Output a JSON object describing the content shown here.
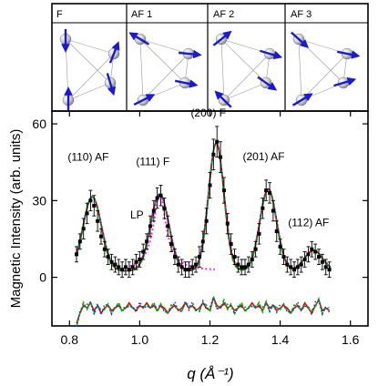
{
  "colors": {
    "frame": "#000000",
    "data_points": "#000000",
    "fit_red": "#dd0000",
    "fit_green": "#00b000",
    "fit_blue": "#2233dd",
    "lorentzian": "#ff22ff",
    "arrow": "#1a1ad0",
    "sphere": "#cfcfcf"
  },
  "config_panels": [
    {
      "label": "F"
    },
    {
      "label": "AF 1"
    },
    {
      "label": "AF 2"
    },
    {
      "label": "AF 3"
    }
  ],
  "chart_data": {
    "type": "line",
    "xlabel": "q (Å⁻¹)",
    "ylabel": "Magnetic Intensity (arb. units)",
    "xlim": [
      0.75,
      1.65
    ],
    "ylim": [
      -19,
      65
    ],
    "xticks": [
      0.8,
      1.0,
      1.2,
      1.4,
      1.6
    ],
    "xtick_labels": [
      "0.8",
      "1.0",
      "1.2",
      "1.4",
      "1.6"
    ],
    "yticks": [
      0,
      30,
      60
    ],
    "ytick_labels": [
      "0",
      "30",
      "60"
    ],
    "grid": false,
    "legend": "none",
    "peaks": [
      {
        "label": "(110) AF",
        "center": 0.865,
        "height": 29,
        "width": 0.026
      },
      {
        "label": "(111) F",
        "center": 1.057,
        "height": 30,
        "width": 0.026
      },
      {
        "label": "(200) F",
        "center": 1.218,
        "height": 50,
        "width": 0.022
      },
      {
        "label": "(201) AF",
        "center": 1.366,
        "height": 32,
        "width": 0.024
      },
      {
        "label": "(112) AF",
        "center": 1.495,
        "height": 8,
        "width": 0.026
      }
    ],
    "background": 2.5,
    "lorentzian_label": "LP",
    "points": [
      [
        0.82,
        9,
        3
      ],
      [
        0.83,
        14,
        3
      ],
      [
        0.84,
        19,
        4
      ],
      [
        0.85,
        25,
        4
      ],
      [
        0.86,
        30,
        4
      ],
      [
        0.87,
        28,
        4
      ],
      [
        0.88,
        22,
        4
      ],
      [
        0.89,
        16,
        3
      ],
      [
        0.9,
        11,
        3
      ],
      [
        0.91,
        8,
        3
      ],
      [
        0.92,
        6,
        3
      ],
      [
        0.93,
        5,
        3
      ],
      [
        0.94,
        4,
        3
      ],
      [
        0.95,
        3,
        3
      ],
      [
        0.96,
        4,
        3
      ],
      [
        0.97,
        3,
        3
      ],
      [
        0.98,
        4,
        3
      ],
      [
        0.99,
        6,
        3
      ],
      [
        1.0,
        7,
        3
      ],
      [
        1.01,
        10,
        3
      ],
      [
        1.02,
        14,
        3
      ],
      [
        1.03,
        20,
        4
      ],
      [
        1.04,
        26,
        4
      ],
      [
        1.05,
        31,
        4
      ],
      [
        1.06,
        32,
        4
      ],
      [
        1.07,
        27,
        4
      ],
      [
        1.08,
        20,
        4
      ],
      [
        1.09,
        13,
        3
      ],
      [
        1.1,
        8,
        3
      ],
      [
        1.11,
        5,
        3
      ],
      [
        1.12,
        4,
        3
      ],
      [
        1.13,
        3,
        3
      ],
      [
        1.14,
        3,
        3
      ],
      [
        1.15,
        4,
        3
      ],
      [
        1.16,
        5,
        3
      ],
      [
        1.17,
        8,
        4
      ],
      [
        1.18,
        14,
        4
      ],
      [
        1.19,
        22,
        5
      ],
      [
        1.2,
        36,
        5
      ],
      [
        1.21,
        48,
        6
      ],
      [
        1.22,
        53,
        6
      ],
      [
        1.23,
        47,
        6
      ],
      [
        1.24,
        34,
        5
      ],
      [
        1.25,
        21,
        4
      ],
      [
        1.26,
        13,
        4
      ],
      [
        1.27,
        8,
        3
      ],
      [
        1.28,
        5,
        3
      ],
      [
        1.29,
        4,
        3
      ],
      [
        1.3,
        4,
        3
      ],
      [
        1.31,
        5,
        3
      ],
      [
        1.32,
        7,
        3
      ],
      [
        1.33,
        11,
        3
      ],
      [
        1.34,
        17,
        4
      ],
      [
        1.35,
        27,
        4
      ],
      [
        1.36,
        34,
        4
      ],
      [
        1.37,
        33,
        4
      ],
      [
        1.38,
        26,
        4
      ],
      [
        1.39,
        18,
        4
      ],
      [
        1.4,
        12,
        3
      ],
      [
        1.41,
        8,
        3
      ],
      [
        1.42,
        5,
        3
      ],
      [
        1.43,
        4,
        3
      ],
      [
        1.44,
        3,
        3
      ],
      [
        1.45,
        4,
        3
      ],
      [
        1.46,
        5,
        3
      ],
      [
        1.47,
        7,
        3
      ],
      [
        1.48,
        9,
        3
      ],
      [
        1.49,
        11,
        3
      ],
      [
        1.5,
        10,
        3
      ],
      [
        1.51,
        8,
        3
      ],
      [
        1.52,
        6,
        3
      ],
      [
        1.53,
        4,
        3
      ],
      [
        1.54,
        3,
        3
      ]
    ],
    "residuals": [
      [
        0.82,
        -18
      ],
      [
        0.83,
        -14
      ],
      [
        0.84,
        -11
      ],
      [
        0.85,
        -12
      ],
      [
        0.86,
        -10
      ],
      [
        0.87,
        -13
      ],
      [
        0.88,
        -11
      ],
      [
        0.89,
        -14
      ],
      [
        0.9,
        -12
      ],
      [
        0.91,
        -11
      ],
      [
        0.92,
        -13
      ],
      [
        0.93,
        -12
      ],
      [
        0.94,
        -11
      ],
      [
        0.95,
        -13
      ],
      [
        0.96,
        -12
      ],
      [
        0.97,
        -10
      ],
      [
        0.98,
        -12
      ],
      [
        0.99,
        -13
      ],
      [
        1.0,
        -11
      ],
      [
        1.01,
        -12
      ],
      [
        1.02,
        -10
      ],
      [
        1.03,
        -12
      ],
      [
        1.04,
        -11
      ],
      [
        1.05,
        -13
      ],
      [
        1.06,
        -11
      ],
      [
        1.07,
        -12
      ],
      [
        1.08,
        -14
      ],
      [
        1.09,
        -12
      ],
      [
        1.1,
        -11
      ],
      [
        1.11,
        -13
      ],
      [
        1.12,
        -12
      ],
      [
        1.13,
        -10
      ],
      [
        1.14,
        -12
      ],
      [
        1.15,
        -11
      ],
      [
        1.16,
        -13
      ],
      [
        1.17,
        -12
      ],
      [
        1.18,
        -10
      ],
      [
        1.19,
        -12
      ],
      [
        1.2,
        -13
      ],
      [
        1.21,
        -8
      ],
      [
        1.22,
        -11
      ],
      [
        1.23,
        -12
      ],
      [
        1.24,
        -10
      ],
      [
        1.25,
        -12
      ],
      [
        1.26,
        -11
      ],
      [
        1.27,
        -13
      ],
      [
        1.28,
        -12
      ],
      [
        1.29,
        -11
      ],
      [
        1.3,
        -13
      ],
      [
        1.31,
        -12
      ],
      [
        1.32,
        -10
      ],
      [
        1.33,
        -12
      ],
      [
        1.34,
        -11
      ],
      [
        1.35,
        -13
      ],
      [
        1.36,
        -10
      ],
      [
        1.37,
        -12
      ],
      [
        1.38,
        -11
      ],
      [
        1.39,
        -13
      ],
      [
        1.4,
        -12
      ],
      [
        1.41,
        -11
      ],
      [
        1.42,
        -12
      ],
      [
        1.43,
        -14
      ],
      [
        1.44,
        -12
      ],
      [
        1.45,
        -11
      ],
      [
        1.46,
        -13
      ],
      [
        1.47,
        -10
      ],
      [
        1.48,
        -12
      ],
      [
        1.49,
        -14
      ],
      [
        1.5,
        -11
      ],
      [
        1.51,
        -9
      ],
      [
        1.52,
        -13
      ],
      [
        1.53,
        -12
      ],
      [
        1.54,
        -13
      ]
    ]
  }
}
